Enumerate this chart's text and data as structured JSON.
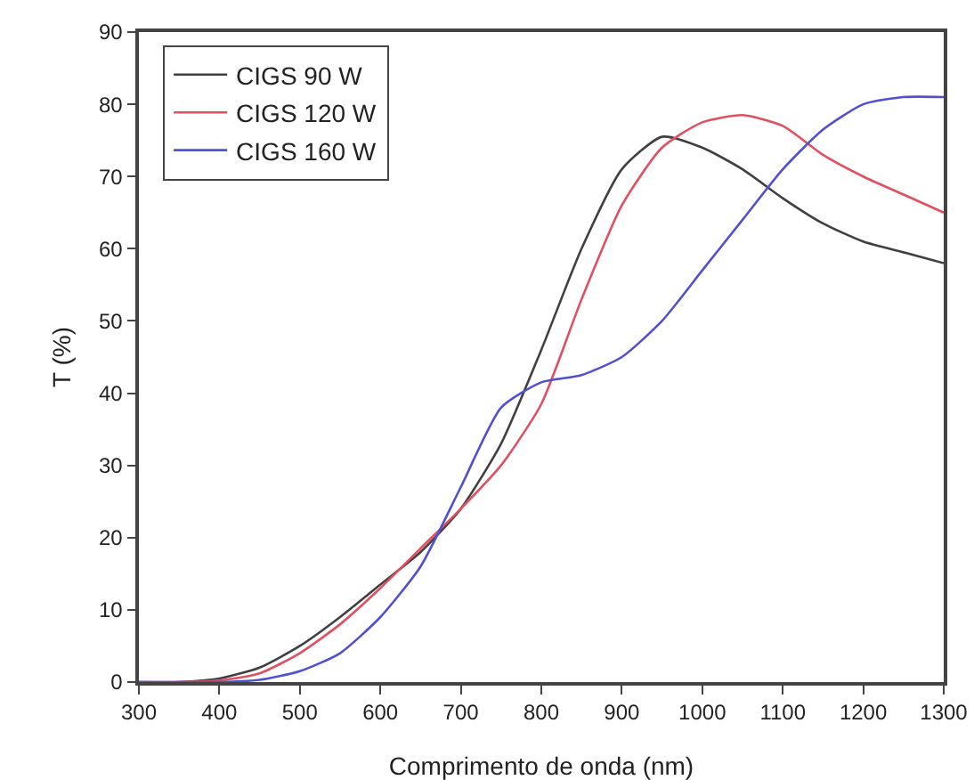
{
  "chart_data": {
    "type": "line",
    "xlabel": "Comprimento de onda (nm)",
    "ylabel": "T (%)",
    "x": [
      300,
      350,
      400,
      450,
      500,
      550,
      600,
      650,
      700,
      750,
      800,
      850,
      900,
      950,
      1000,
      1050,
      1100,
      1150,
      1200,
      1250,
      1300
    ],
    "xlim": [
      300,
      1300
    ],
    "xticks": [
      300,
      400,
      500,
      600,
      700,
      800,
      900,
      1000,
      1100,
      1200,
      1300
    ],
    "ylim": [
      0,
      90
    ],
    "yticks": [
      0,
      10,
      20,
      30,
      40,
      50,
      60,
      70,
      80,
      90
    ],
    "grid": false,
    "legend": "top left",
    "marker": "none",
    "line_style": "solid",
    "series": [
      {
        "name": "CIGS 90 W",
        "color": "#404040",
        "values": [
          0,
          0,
          0.5,
          2,
          5,
          9,
          13.5,
          18,
          24,
          33,
          46,
          60,
          71,
          75.5,
          74,
          71,
          67,
          63.5,
          61,
          59.5,
          58
        ]
      },
      {
        "name": "CIGS 120 W",
        "color": "#e05060",
        "values": [
          0,
          0,
          0.2,
          1.2,
          4,
          8,
          13,
          18.5,
          24,
          30,
          38.5,
          53,
          66,
          74,
          77.5,
          78.5,
          77,
          73,
          70,
          67.5,
          65
        ]
      },
      {
        "name": "CIGS 160 W",
        "color": "#5050d0",
        "values": [
          0,
          0,
          0,
          0.3,
          1.5,
          4,
          9,
          16,
          27,
          38,
          41.5,
          42.5,
          45,
          50,
          57,
          64,
          71,
          76.5,
          80,
          81,
          81
        ]
      }
    ]
  }
}
